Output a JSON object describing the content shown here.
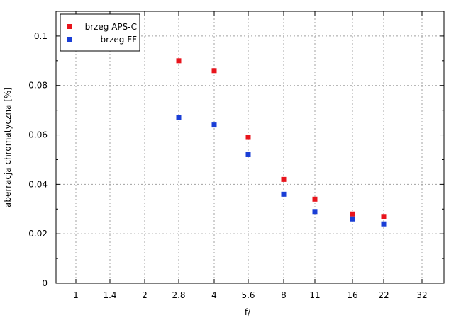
{
  "chart_data": {
    "type": "scatter",
    "title": "",
    "xlabel": "f/",
    "ylabel": "aberracja chromatyczna [%]",
    "x_categories": [
      "1",
      "1.4",
      "2",
      "2.8",
      "4",
      "5.6",
      "8",
      "11",
      "16",
      "22",
      "32"
    ],
    "ylim": [
      0,
      0.11
    ],
    "y_ticks": [
      0,
      0.02,
      0.04,
      0.06,
      0.08,
      0.1
    ],
    "y_tick_labels": [
      "0",
      "0.02",
      "0.04",
      "0.06",
      "0.08",
      "0.1"
    ],
    "grid": true,
    "legend_position": "top-left",
    "series": [
      {
        "name": "brzeg APS-C",
        "color": "#e8141c",
        "points": [
          {
            "x": "2.8",
            "y": 0.09
          },
          {
            "x": "4",
            "y": 0.086
          },
          {
            "x": "5.6",
            "y": 0.059
          },
          {
            "x": "8",
            "y": 0.042
          },
          {
            "x": "11",
            "y": 0.034
          },
          {
            "x": "16",
            "y": 0.028
          },
          {
            "x": "22",
            "y": 0.027
          }
        ]
      },
      {
        "name": "brzeg FF",
        "color": "#1a3ed6",
        "points": [
          {
            "x": "2.8",
            "y": 0.067
          },
          {
            "x": "4",
            "y": 0.064
          },
          {
            "x": "5.6",
            "y": 0.052
          },
          {
            "x": "8",
            "y": 0.036
          },
          {
            "x": "11",
            "y": 0.029
          },
          {
            "x": "16",
            "y": 0.026
          },
          {
            "x": "22",
            "y": 0.024
          }
        ]
      }
    ]
  }
}
